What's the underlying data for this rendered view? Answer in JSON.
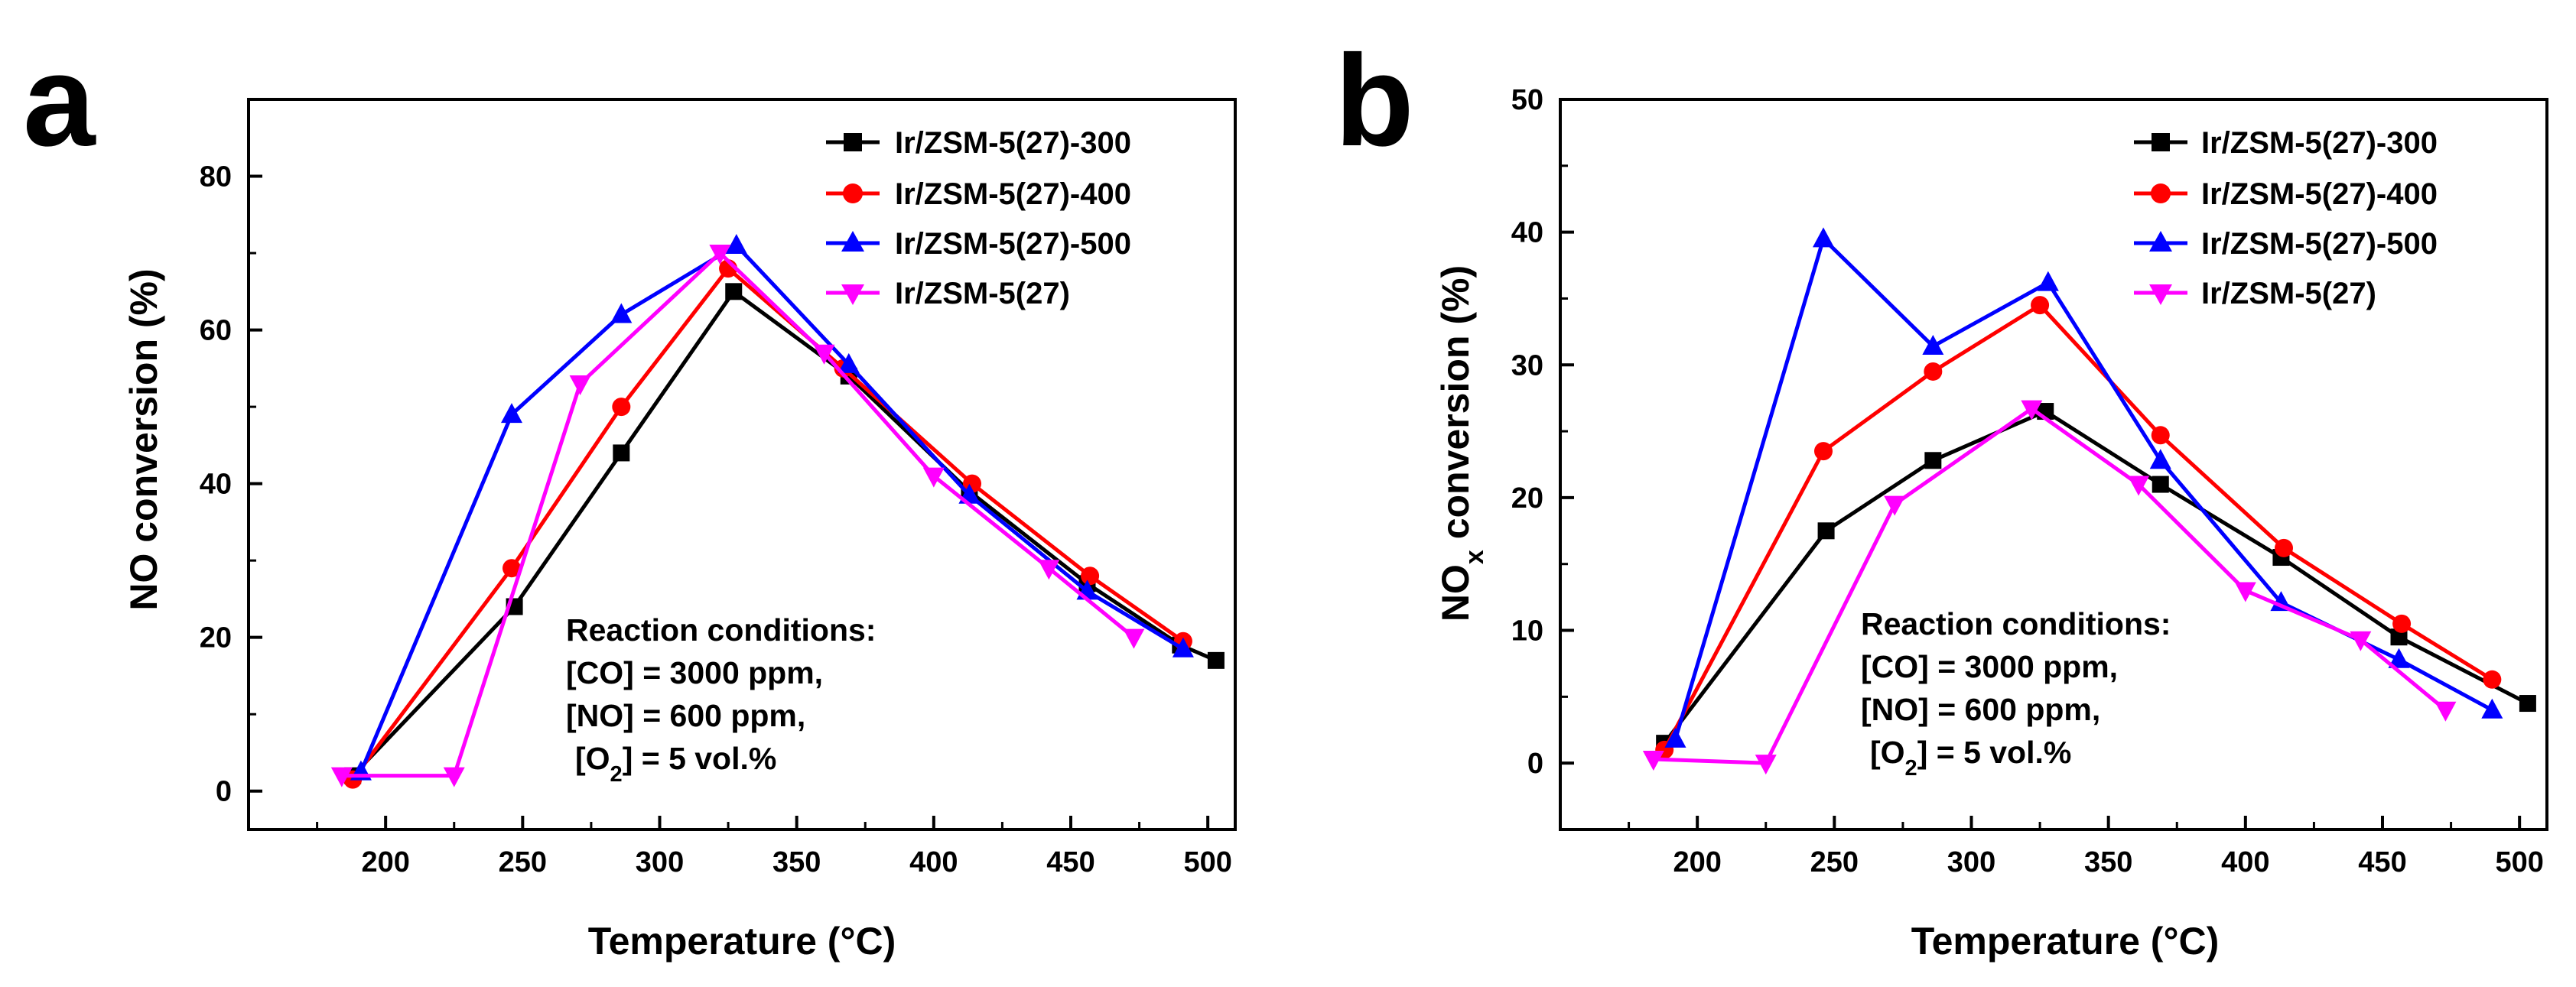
{
  "figure": {
    "panels": [
      "a",
      "b"
    ]
  },
  "chart_data": [
    {
      "panel_letter": "a",
      "type": "line",
      "title": "",
      "xlabel_main": "Temperature (",
      "xlabel_unit": "°C",
      "xlabel_close": ")",
      "ylabel_parts": {
        "pre": "NO conversion (%)",
        "sub": "",
        "post": ""
      },
      "xlim": [
        150,
        510
      ],
      "ylim": [
        -5,
        90
      ],
      "xticks": [
        200,
        250,
        300,
        350,
        400,
        450,
        500
      ],
      "yticks": [
        0,
        20,
        40,
        60,
        80
      ],
      "legend_position": "top-right",
      "series": [
        {
          "name": "Ir/ZSM-5(27)-300",
          "color": "#000000",
          "marker": "square",
          "x": [
            188,
            247,
            286,
            327,
            369,
            413,
            456,
            490,
            503
          ],
          "y": [
            2,
            24,
            44,
            65,
            54,
            39,
            27,
            19,
            17
          ]
        },
        {
          "name": "Ir/ZSM-5(27)-400",
          "color": "#ff0000",
          "marker": "circle",
          "x": [
            188,
            246,
            286,
            325,
            367,
            414,
            457,
            491
          ],
          "y": [
            1.5,
            29,
            50,
            68,
            55,
            40,
            28,
            19.5
          ]
        },
        {
          "name": "Ir/ZSM-5(27)-500",
          "color": "#0000ff",
          "marker": "triangle-up",
          "x": [
            191,
            246,
            286,
            328,
            369,
            413,
            456,
            491
          ],
          "y": [
            2.5,
            49,
            62,
            71,
            55.5,
            38.5,
            26,
            18.5
          ]
        },
        {
          "name": "Ir/ZSM-5(27)",
          "color": "#ff00ff",
          "marker": "triangle-down",
          "x": [
            184,
            225,
            271,
            322,
            360,
            400,
            442,
            473
          ],
          "y": [
            2,
            2,
            53,
            70,
            57,
            41,
            29,
            20
          ]
        }
      ],
      "annotation": {
        "color": "#8b1a8b",
        "title": "Reaction conditions:",
        "co": "[CO] = 3000 ppm,",
        "no": "[NO] = 600 ppm,",
        "o2_pre": "[O",
        "o2_sub": "2",
        "o2_post": "] = 5 vol.%"
      }
    },
    {
      "panel_letter": "b",
      "type": "line",
      "title": "",
      "xlabel_main": "Temperature (",
      "xlabel_unit": "°C",
      "xlabel_close": ")",
      "ylabel_parts": {
        "pre": "NO",
        "sub": "x",
        "post": " conversion (%)"
      },
      "xlim": [
        150,
        510
      ],
      "ylim": [
        -5,
        50
      ],
      "xticks": [
        200,
        250,
        300,
        350,
        400,
        450,
        500
      ],
      "yticks": [
        0,
        10,
        20,
        30,
        40,
        50
      ],
      "legend_position": "top-right",
      "series": [
        {
          "name": "Ir/ZSM-5(27)-300",
          "color": "#000000",
          "marker": "square",
          "x": [
            188,
            247,
            286,
            327,
            369,
            413,
            456,
            503
          ],
          "y": [
            1.5,
            17.5,
            22.8,
            26.5,
            21,
            15.5,
            9.5,
            4.5
          ]
        },
        {
          "name": "Ir/ZSM-5(27)-400",
          "color": "#ff0000",
          "marker": "circle",
          "x": [
            188,
            246,
            286,
            325,
            369,
            414,
            457,
            490
          ],
          "y": [
            1,
            23.5,
            29.5,
            34.5,
            24.7,
            16.2,
            10.5,
            6.3
          ]
        },
        {
          "name": "Ir/ZSM-5(27)-500",
          "color": "#0000ff",
          "marker": "triangle-up",
          "x": [
            192,
            246,
            286,
            328,
            369,
            413,
            456,
            490
          ],
          "y": [
            1.8,
            39.5,
            31.4,
            36.2,
            22.8,
            12.1,
            7.8,
            4
          ]
        },
        {
          "name": "Ir/ZSM-5(27)",
          "color": "#ff00ff",
          "marker": "triangle-down",
          "x": [
            184,
            225,
            272,
            322,
            361,
            400,
            442,
            473
          ],
          "y": [
            0.3,
            0,
            19.5,
            26.7,
            21,
            13,
            9.3,
            4
          ]
        }
      ],
      "annotation": {
        "color": "#8b1a8b",
        "title": "Reaction conditions:",
        "co": "[CO] = 3000 ppm,",
        "no": "[NO] = 600 ppm,",
        "o2_pre": "[O",
        "o2_sub": "2",
        "o2_post": "] = 5 vol.%"
      }
    }
  ]
}
